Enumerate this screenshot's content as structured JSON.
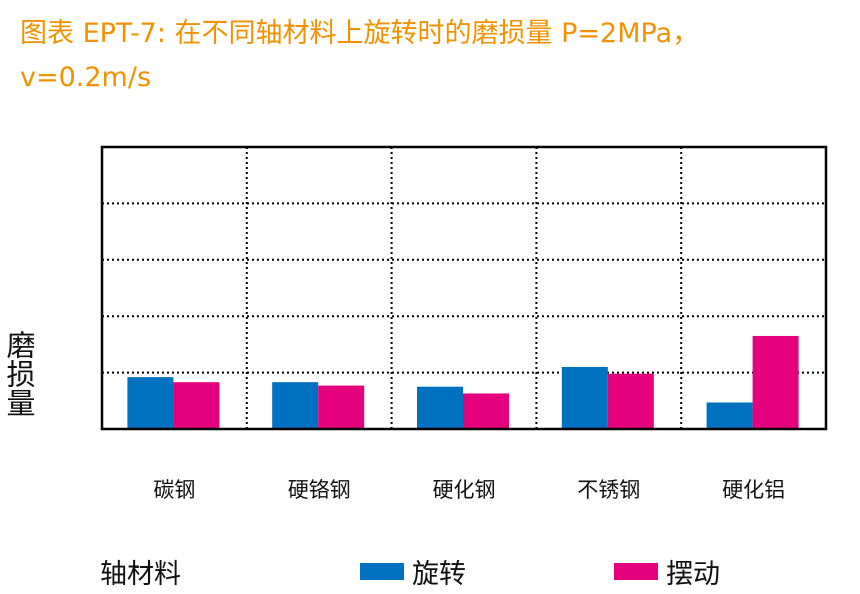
{
  "header": {
    "title_line1": "图表 EPT-7: 在不同轴材料上旋转时的磨损量 P=2MPa，",
    "title_line2": "v=0.2m/s"
  },
  "colors": {
    "title": "#F39200",
    "rotation": "#0070C0",
    "oscillation": "#E5007E"
  },
  "chart_data": {
    "type": "bar",
    "categories": [
      "碳钢",
      "硬铬钢",
      "硬化钢",
      "不锈钢",
      "硬化铝"
    ],
    "series": [
      {
        "name": "旋转",
        "values": [
          0.92,
          0.83,
          0.75,
          1.1,
          0.47
        ]
      },
      {
        "name": "摆动",
        "values": [
          0.83,
          0.77,
          0.63,
          0.98,
          1.65
        ]
      }
    ],
    "xlabel": "轴材料",
    "ylabel": "磨损量",
    "ylim": [
      0,
      5
    ],
    "grid": true,
    "grid_style": "dotted",
    "legend_position": "bottom"
  }
}
